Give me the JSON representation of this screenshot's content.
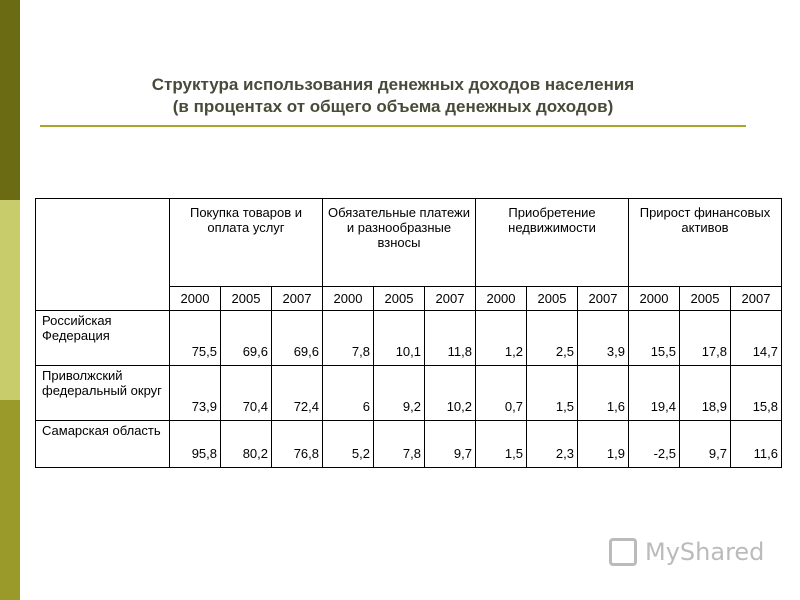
{
  "title": {
    "line1": "Структура использования денежных доходов населения",
    "line2": "(в процентах от общего объема денежных доходов)"
  },
  "table": {
    "groups": [
      {
        "label": "Покупка товаров и оплата услуг",
        "years": [
          "2000",
          "2005",
          "2007"
        ]
      },
      {
        "label": "Обязательные платежи и разнообразные взносы",
        "years": [
          "2000",
          "2005",
          "2007"
        ]
      },
      {
        "label": "Приобретение недвижимости",
        "years": [
          "2000",
          "2005",
          "2007"
        ]
      },
      {
        "label": "Прирост финансовых активов",
        "years": [
          "2000",
          "2005",
          "2007"
        ]
      }
    ],
    "rows": [
      {
        "label": "Российская Федерация",
        "values": [
          "75,5",
          "69,6",
          "69,6",
          "7,8",
          "10,1",
          "11,8",
          "1,2",
          "2,5",
          "3,9",
          "15,5",
          "17,8",
          "14,7"
        ]
      },
      {
        "label": "Приволжский федеральный округ",
        "values": [
          "73,9",
          "70,4",
          "72,4",
          "6",
          "9,2",
          "10,2",
          "0,7",
          "1,5",
          "1,6",
          "19,4",
          "18,9",
          "15,8"
        ]
      },
      {
        "label": "Самарская область",
        "values": [
          "95,8",
          "80,2",
          "76,8",
          "5,2",
          "7,8",
          "9,7",
          "1,5",
          "2,3",
          "1,9",
          "-2,5",
          "9,7",
          "11,6"
        ]
      }
    ]
  },
  "watermark": "MyShared"
}
